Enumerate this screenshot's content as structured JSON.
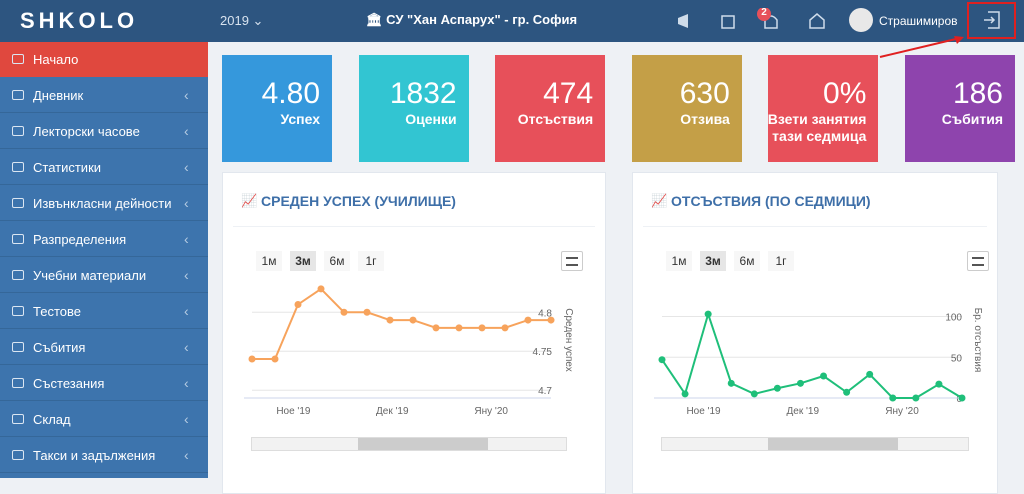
{
  "header": {
    "logo": "SHKOLO",
    "year": "2019",
    "school": "СУ \"Хан Аспарух\" - гр. София",
    "notifications": "2",
    "user": "Страшимиров"
  },
  "sidebar": {
    "items": [
      "Начало",
      "Дневник",
      "Лекторски часове",
      "Статистики",
      "Извънкласни дейности",
      "Разпределения",
      "Учебни материали",
      "Тестове",
      "Събития",
      "Състезания",
      "Склад",
      "Такси и задължения"
    ]
  },
  "stats": [
    {
      "value": "4.80",
      "label": "Успех",
      "color": "#3598dc"
    },
    {
      "value": "1832",
      "label": "Оценки",
      "color": "#32c5d2"
    },
    {
      "value": "474",
      "label": "Отсъствия",
      "color": "#e7505a"
    },
    {
      "value": "630",
      "label": "Отзива",
      "color": "#c49f47"
    },
    {
      "value": "0%",
      "label": "Взети занятия тази седмица",
      "color": "#e7505a"
    },
    {
      "value": "186",
      "label": "Събития",
      "color": "#8e44ad"
    }
  ],
  "charts": [
    {
      "type": "line",
      "title": "СРЕДЕН УСПЕХ (УЧИЛИЩЕ)",
      "ranges": [
        "1м",
        "3м",
        "6м",
        "1г"
      ],
      "ylabel": "Среден успех",
      "xtick_labels": [
        "Ное '19",
        "Дек '19",
        "Яну '20"
      ],
      "color": "#f7a35c",
      "values": [
        4.74,
        4.74,
        4.81,
        4.83,
        4.8,
        4.8,
        4.79,
        4.79,
        4.78,
        4.78,
        4.78,
        4.78,
        4.79,
        4.79
      ],
      "ylim": [
        4.69,
        4.835
      ],
      "yticks": [
        4.7,
        4.75,
        4.8
      ]
    },
    {
      "type": "line",
      "title": "ОТСЪСТВИЯ (ПО СЕДМИЦИ)",
      "ranges": [
        "1м",
        "3м",
        "6м",
        "1г"
      ],
      "ylabel": "Бр. отсъствия",
      "xtick_labels": [
        "Ное '19",
        "Дек '19",
        "Яну '20"
      ],
      "color": "#1fbf7a",
      "values": [
        47,
        5,
        103,
        18,
        5,
        12,
        18,
        27,
        7,
        29,
        0,
        0,
        17,
        0
      ],
      "ylim": [
        0,
        135
      ],
      "yticks": [
        0,
        50,
        100
      ]
    }
  ]
}
